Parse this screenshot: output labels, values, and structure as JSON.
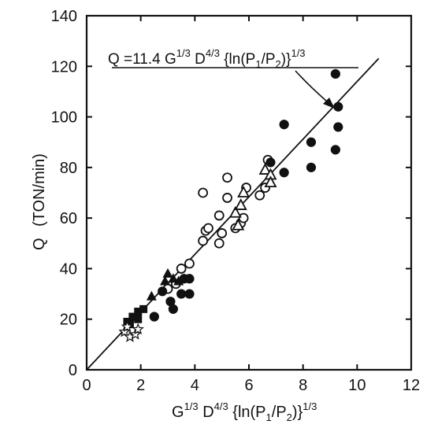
{
  "chart_data": {
    "type": "scatter",
    "title": "",
    "xlabel": "G^{1/3} D^{4/3} {ln(P1/P2)}^{1/3}",
    "ylabel_symbol": "Q",
    "ylabel_unit": "(TON/min)",
    "xlim": [
      0,
      12
    ],
    "ylim": [
      0,
      140
    ],
    "xticks": [
      0,
      2,
      4,
      6,
      8,
      10,
      12
    ],
    "yticks": [
      0,
      20,
      40,
      60,
      80,
      100,
      120,
      140
    ],
    "grid": false,
    "fit_line": {
      "slope": 11.4,
      "intercept": 0,
      "x_range": [
        0,
        10.8
      ]
    },
    "annotation": "Q = 11.4 G^{1/3} D^{4/3} {ln(P1/P2)}^{1/3}",
    "series": [
      {
        "marker": "open-circle",
        "points": [
          [
            3.5,
            40
          ],
          [
            3.8,
            42
          ],
          [
            4.3,
            51
          ],
          [
            4.4,
            55
          ],
          [
            4.5,
            56
          ],
          [
            4.3,
            70
          ],
          [
            4.9,
            50
          ],
          [
            5.0,
            54
          ],
          [
            4.9,
            61
          ],
          [
            5.2,
            68
          ],
          [
            5.2,
            76
          ],
          [
            5.5,
            56
          ],
          [
            5.7,
            58
          ],
          [
            5.9,
            72
          ],
          [
            6.4,
            69
          ],
          [
            6.6,
            72
          ],
          [
            6.7,
            83
          ],
          [
            3.0,
            32
          ],
          [
            3.3,
            34
          ],
          [
            5.8,
            60
          ]
        ]
      },
      {
        "marker": "filled-circle",
        "points": [
          [
            2.5,
            21
          ],
          [
            3.1,
            27
          ],
          [
            3.2,
            24
          ],
          [
            3.5,
            30
          ],
          [
            3.6,
            36
          ],
          [
            3.8,
            36
          ],
          [
            3.8,
            30
          ],
          [
            2.8,
            31
          ],
          [
            7.3,
            97
          ],
          [
            7.3,
            78
          ],
          [
            8.3,
            80
          ],
          [
            8.3,
            90
          ],
          [
            9.2,
            87
          ],
          [
            9.3,
            96
          ],
          [
            9.2,
            117
          ],
          [
            9.3,
            104
          ],
          [
            6.8,
            82
          ]
        ]
      },
      {
        "marker": "open-triangle",
        "points": [
          [
            5.5,
            62
          ],
          [
            5.7,
            65
          ],
          [
            5.8,
            70
          ],
          [
            6.6,
            79
          ],
          [
            6.8,
            77
          ],
          [
            6.8,
            74
          ],
          [
            5.6,
            57
          ]
        ]
      },
      {
        "marker": "filled-triangle",
        "points": [
          [
            3.0,
            38
          ],
          [
            2.9,
            35
          ],
          [
            3.2,
            36
          ],
          [
            2.4,
            29
          ],
          [
            3.4,
            35
          ]
        ]
      },
      {
        "marker": "filled-square",
        "points": [
          [
            1.5,
            19
          ],
          [
            1.7,
            21
          ],
          [
            1.9,
            23
          ],
          [
            2.1,
            24
          ],
          [
            1.6,
            18
          ],
          [
            1.9,
            20
          ]
        ]
      },
      {
        "marker": "open-star",
        "points": [
          [
            1.4,
            15
          ],
          [
            1.6,
            13
          ],
          [
            1.8,
            14
          ],
          [
            1.5,
            17
          ],
          [
            1.9,
            16
          ]
        ]
      }
    ]
  }
}
